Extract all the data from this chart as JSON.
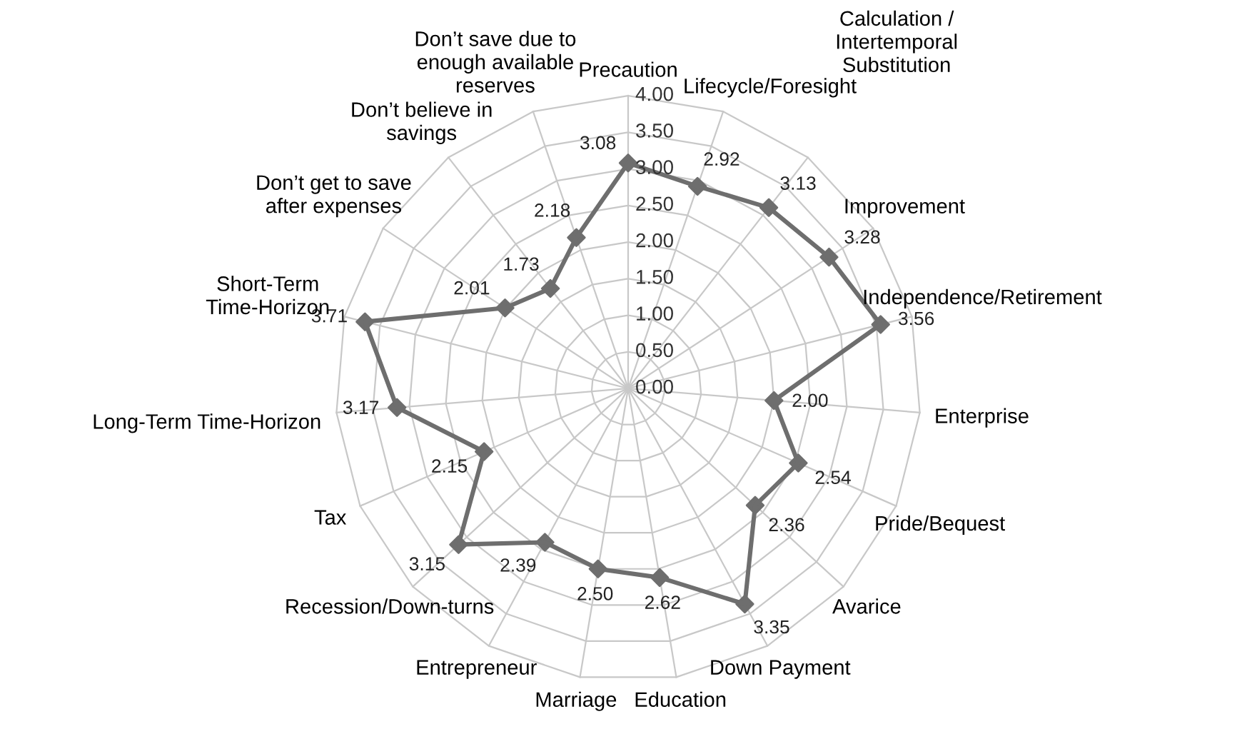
{
  "chart_data": {
    "type": "radar",
    "categories": [
      "Precaution",
      "Lifecycle/Foresight",
      "Calculation / Intertemporal Substitution",
      "Improvement",
      "Independence/Retirement",
      "Enterprise",
      "Pride/Bequest",
      "Avarice",
      "Down Payment",
      "Education",
      "Marriage",
      "Entrepreneur",
      "Recession/Down-turns",
      "Tax",
      "Long-Term Time-Horizon",
      "Short-Term Time-Horizon",
      "Don’t get to save after expenses",
      "Don’t believe in savings",
      "Don’t save due to enough available reserves"
    ],
    "series": [
      {
        "color": "#6e6e6e",
        "values": [
          3.08,
          2.92,
          3.13,
          3.28,
          3.56,
          2.0,
          2.54,
          2.36,
          3.35,
          2.62,
          2.5,
          2.39,
          3.15,
          2.15,
          3.17,
          3.71,
          2.01,
          1.73,
          2.18
        ],
        "value_labels": [
          "3.08",
          "2.92",
          "3.13",
          "3.28",
          "3.56",
          "2.00",
          "2.54",
          "2.36",
          "3.35",
          "2.62",
          "2.50",
          "2.39",
          "3.15",
          "2.15",
          "3.17",
          "3.71",
          "2.01",
          "1.73",
          "2.18"
        ]
      }
    ],
    "ylim": [
      0,
      4
    ],
    "yticks": [
      {
        "value": 0,
        "label": "0.00"
      },
      {
        "value": 0.5,
        "label": "0.50"
      },
      {
        "value": 1,
        "label": "1.00"
      },
      {
        "value": 1.5,
        "label": "1.50"
      },
      {
        "value": 2,
        "label": "2.00"
      },
      {
        "value": 2.5,
        "label": "2.50"
      },
      {
        "value": 3,
        "label": "3.00"
      },
      {
        "value": 3.5,
        "label": "3.50"
      },
      {
        "value": 4,
        "label": "4.00"
      }
    ],
    "grid": true,
    "marker": "diamond",
    "line_style": "solid"
  }
}
